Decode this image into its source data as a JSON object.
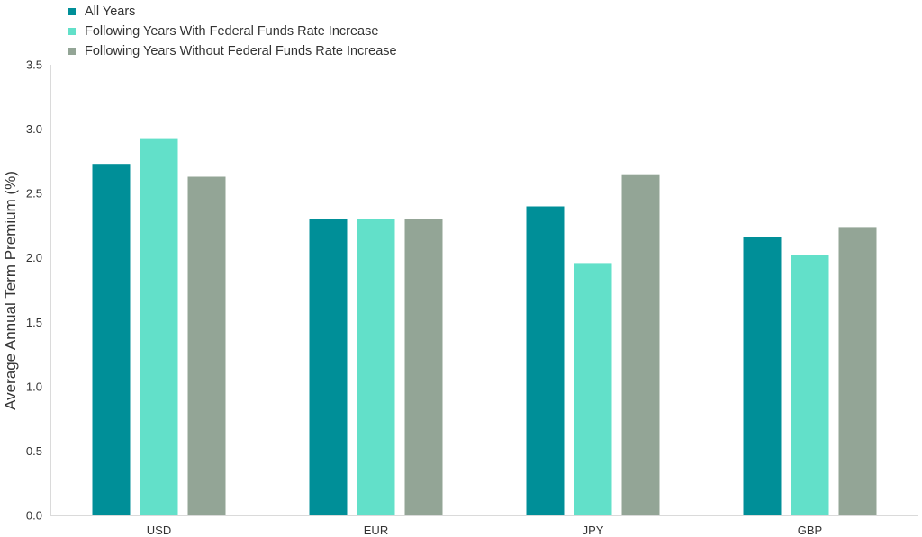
{
  "chart_data": {
    "type": "bar",
    "title": "",
    "xlabel": "",
    "ylabel": "Average Annual Term Premium (%)",
    "categories": [
      "USD",
      "EUR",
      "JPY",
      "GBP"
    ],
    "ylim": [
      0,
      3.5
    ],
    "yticks": [
      "0.0",
      "0.5",
      "1.0",
      "1.5",
      "2.0",
      "2.5",
      "3.0",
      "3.5"
    ],
    "grid": false,
    "legend_position": "top-left",
    "series": [
      {
        "name": "All Years",
        "color": "#008f98",
        "values": [
          2.73,
          2.3,
          2.4,
          2.16
        ]
      },
      {
        "name": "Following Years With Federal Funds Rate Increase",
        "color": "#62e0c9",
        "values": [
          2.93,
          2.3,
          1.96,
          2.02
        ]
      },
      {
        "name": "Following Years Without Federal Funds Rate Increase",
        "color": "#93a596",
        "values": [
          2.63,
          2.3,
          2.65,
          2.24
        ]
      }
    ]
  }
}
